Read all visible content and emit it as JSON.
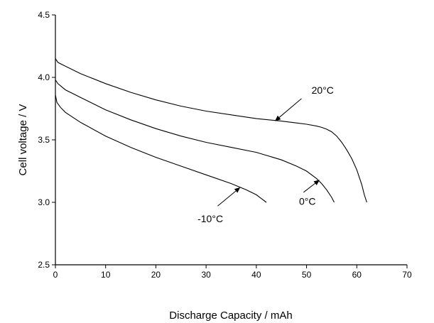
{
  "chart_data": {
    "type": "line",
    "xlabel": "Discharge Capacity / mAh",
    "ylabel": "Cell voltage / V",
    "xlim": [
      0,
      70
    ],
    "ylim": [
      2.5,
      4.5
    ],
    "xticks": [
      0,
      10,
      20,
      30,
      40,
      50,
      60,
      70
    ],
    "yticks": [
      2.5,
      3.0,
      3.5,
      4.0,
      4.5
    ],
    "xtick_labels": [
      "0",
      "10",
      "20",
      "30",
      "40",
      "50",
      "60",
      "70"
    ],
    "ytick_labels": [
      "2.5",
      "3.0",
      "3.5",
      "4.0",
      "4.5"
    ],
    "grid": false,
    "legend": "none",
    "line_color": "#000000",
    "series": [
      {
        "x": [
          0,
          0.5,
          2,
          5,
          10,
          15,
          20,
          25,
          30,
          35,
          40,
          45,
          48,
          50,
          52,
          53,
          54,
          55,
          56,
          57,
          58,
          59,
          60,
          61,
          61.5,
          62
        ],
        "y": [
          4.15,
          4.12,
          4.09,
          4.03,
          3.95,
          3.88,
          3.82,
          3.77,
          3.73,
          3.7,
          3.67,
          3.65,
          3.635,
          3.625,
          3.61,
          3.6,
          3.585,
          3.565,
          3.53,
          3.48,
          3.42,
          3.35,
          3.26,
          3.14,
          3.06,
          3.0
        ]
      },
      {
        "x": [
          0,
          0.5,
          2,
          5,
          10,
          15,
          20,
          25,
          30,
          35,
          40,
          45,
          48,
          50,
          52,
          53,
          54,
          55,
          55.5
        ],
        "y": [
          3.98,
          3.95,
          3.9,
          3.84,
          3.74,
          3.66,
          3.59,
          3.53,
          3.48,
          3.44,
          3.4,
          3.34,
          3.29,
          3.25,
          3.19,
          3.15,
          3.1,
          3.04,
          3.0
        ]
      },
      {
        "x": [
          0,
          0.3,
          1,
          2,
          5,
          10,
          15,
          20,
          25,
          30,
          35,
          38,
          40,
          41,
          42
        ],
        "y": [
          3.86,
          3.8,
          3.76,
          3.72,
          3.64,
          3.53,
          3.44,
          3.36,
          3.29,
          3.22,
          3.15,
          3.1,
          3.06,
          3.03,
          3.0
        ]
      }
    ],
    "annotations": [
      {
        "text": "20°C",
        "text_at": [
          51,
          3.87
        ],
        "arrow_from": [
          49,
          3.83
        ],
        "arrow_to": [
          43.7,
          3.65
        ]
      },
      {
        "text": "0°C",
        "text_at": [
          48.5,
          2.98
        ],
        "arrow_from": [
          49.4,
          3.08
        ],
        "arrow_to": [
          52.6,
          3.18
        ]
      },
      {
        "text": "-10°C",
        "text_at": [
          28.3,
          2.84
        ],
        "arrow_from": [
          32.3,
          2.97
        ],
        "arrow_to": [
          36.8,
          3.12
        ]
      }
    ]
  }
}
